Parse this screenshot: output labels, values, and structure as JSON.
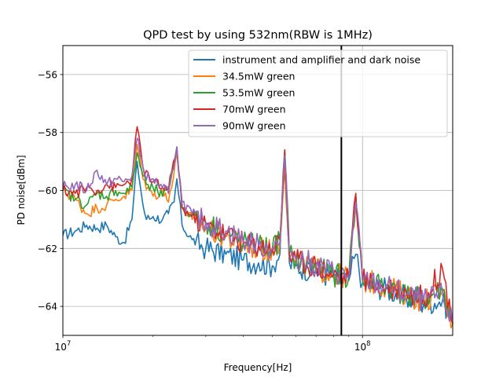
{
  "chart_data": {
    "type": "line",
    "title": "QPD test by using 532nm(RBW is 1MHz)",
    "xlabel": "Frequency[Hz]",
    "ylabel": "PD noise[dBm]",
    "xscale": "log",
    "xlim": [
      10000000,
      200000000
    ],
    "ylim": [
      -65,
      -55
    ],
    "xticks": [
      {
        "value": 10000000,
        "base": "10",
        "exp": "7"
      },
      {
        "value": 100000000,
        "base": "10",
        "exp": "8"
      }
    ],
    "yticks": [
      -56,
      -58,
      -60,
      -62,
      -64
    ],
    "grid": true,
    "legend_position": "top-right",
    "vline_x": 85000000,
    "series": [
      {
        "name": "instrument and amplifier and dark noise",
        "color": "#1f77b4",
        "points": [
          [
            10000000,
            -61.55
          ],
          [
            11000000,
            -61.4
          ],
          [
            12000000,
            -61.2
          ],
          [
            13000000,
            -61.3
          ],
          [
            14000000,
            -61.2
          ],
          [
            15000000,
            -61.6
          ],
          [
            16000000,
            -61.8
          ],
          [
            17000000,
            -61.0
          ],
          [
            17700000,
            -59.0
          ],
          [
            18500000,
            -60.5
          ],
          [
            19000000,
            -61.0
          ],
          [
            20000000,
            -60.9
          ],
          [
            21500000,
            -61.0
          ],
          [
            22500000,
            -60.8
          ],
          [
            23500000,
            -60.4
          ],
          [
            24000000,
            -59.6
          ],
          [
            25000000,
            -61.2
          ],
          [
            27000000,
            -61.7
          ],
          [
            30000000,
            -62.0
          ],
          [
            35000000,
            -62.2
          ],
          [
            40000000,
            -62.4
          ],
          [
            45000000,
            -62.5
          ],
          [
            50000000,
            -62.6
          ],
          [
            53000000,
            -62.2
          ],
          [
            55000000,
            -59.2
          ],
          [
            57000000,
            -62.5
          ],
          [
            60000000,
            -62.6
          ],
          [
            70000000,
            -62.8
          ],
          [
            80000000,
            -63.0
          ],
          [
            90000000,
            -63.1
          ],
          [
            95000000,
            -62.2
          ],
          [
            100000000,
            -63.2
          ],
          [
            120000000,
            -63.4
          ],
          [
            140000000,
            -63.7
          ],
          [
            160000000,
            -63.9
          ],
          [
            185000000,
            -63.8
          ],
          [
            200000000,
            -64.4
          ]
        ]
      },
      {
        "name": "34.5mW green",
        "color": "#ff7f0e",
        "points": [
          [
            10000000,
            -60.0
          ],
          [
            11000000,
            -60.3
          ],
          [
            12000000,
            -60.8
          ],
          [
            13000000,
            -60.6
          ],
          [
            14000000,
            -60.5
          ],
          [
            15000000,
            -60.3
          ],
          [
            16000000,
            -60.2
          ],
          [
            17000000,
            -60.0
          ],
          [
            17700000,
            -58.4
          ],
          [
            18500000,
            -59.6
          ],
          [
            19500000,
            -60.0
          ],
          [
            20000000,
            -60.2
          ],
          [
            21500000,
            -60.0
          ],
          [
            22500000,
            -60.4
          ],
          [
            24000000,
            -58.7
          ],
          [
            25000000,
            -60.6
          ],
          [
            27000000,
            -61.0
          ],
          [
            30000000,
            -61.3
          ],
          [
            35000000,
            -61.6
          ],
          [
            40000000,
            -61.9
          ],
          [
            45000000,
            -62.0
          ],
          [
            50000000,
            -62.1
          ],
          [
            53000000,
            -61.8
          ],
          [
            55000000,
            -58.9
          ],
          [
            57000000,
            -62.3
          ],
          [
            60000000,
            -62.4
          ],
          [
            70000000,
            -62.7
          ],
          [
            80000000,
            -62.9
          ],
          [
            90000000,
            -63.0
          ],
          [
            95000000,
            -60.5
          ],
          [
            100000000,
            -63.1
          ],
          [
            120000000,
            -63.3
          ],
          [
            140000000,
            -63.6
          ],
          [
            160000000,
            -63.8
          ],
          [
            185000000,
            -63.5
          ],
          [
            200000000,
            -64.6
          ]
        ]
      },
      {
        "name": "53.5mW green",
        "color": "#2ca02c",
        "points": [
          [
            10000000,
            -60.0
          ],
          [
            11000000,
            -60.3
          ],
          [
            12000000,
            -60.5
          ],
          [
            13000000,
            -60.1
          ],
          [
            14000000,
            -60.2
          ],
          [
            15000000,
            -60.0
          ],
          [
            16000000,
            -60.1
          ],
          [
            17000000,
            -59.9
          ],
          [
            17700000,
            -58.7
          ],
          [
            18500000,
            -59.5
          ],
          [
            19500000,
            -60.0
          ],
          [
            20000000,
            -59.9
          ],
          [
            21500000,
            -60.2
          ],
          [
            22500000,
            -60.0
          ],
          [
            24000000,
            -58.5
          ],
          [
            25000000,
            -60.6
          ],
          [
            27000000,
            -60.8
          ],
          [
            30000000,
            -61.1
          ],
          [
            35000000,
            -61.5
          ],
          [
            40000000,
            -61.8
          ],
          [
            45000000,
            -61.9
          ],
          [
            50000000,
            -62.0
          ],
          [
            53000000,
            -61.7
          ],
          [
            55000000,
            -58.6
          ],
          [
            57000000,
            -62.2
          ],
          [
            60000000,
            -62.4
          ],
          [
            70000000,
            -62.7
          ],
          [
            80000000,
            -62.9
          ],
          [
            90000000,
            -63.0
          ],
          [
            95000000,
            -60.2
          ],
          [
            100000000,
            -63.1
          ],
          [
            120000000,
            -63.3
          ],
          [
            140000000,
            -63.6
          ],
          [
            160000000,
            -63.8
          ],
          [
            185000000,
            -63.4
          ],
          [
            200000000,
            -64.6
          ]
        ]
      },
      {
        "name": "70mW green",
        "color": "#d62728",
        "points": [
          [
            10000000,
            -60.0
          ],
          [
            11000000,
            -60.1
          ],
          [
            12000000,
            -59.9
          ],
          [
            13000000,
            -60.0
          ],
          [
            14000000,
            -59.8
          ],
          [
            15000000,
            -59.9
          ],
          [
            16000000,
            -59.8
          ],
          [
            17000000,
            -59.6
          ],
          [
            17700000,
            -57.8
          ],
          [
            18500000,
            -59.2
          ],
          [
            19500000,
            -59.6
          ],
          [
            20000000,
            -59.7
          ],
          [
            21500000,
            -59.9
          ],
          [
            22500000,
            -60.0
          ],
          [
            24000000,
            -58.5
          ],
          [
            25000000,
            -60.6
          ],
          [
            27000000,
            -60.9
          ],
          [
            30000000,
            -61.2
          ],
          [
            35000000,
            -61.5
          ],
          [
            40000000,
            -61.8
          ],
          [
            45000000,
            -61.9
          ],
          [
            50000000,
            -62.0
          ],
          [
            53000000,
            -61.7
          ],
          [
            55000000,
            -58.6
          ],
          [
            57000000,
            -62.2
          ],
          [
            60000000,
            -62.4
          ],
          [
            70000000,
            -62.6
          ],
          [
            80000000,
            -62.9
          ],
          [
            90000000,
            -63.0
          ],
          [
            95000000,
            -60.1
          ],
          [
            100000000,
            -63.1
          ],
          [
            120000000,
            -63.3
          ],
          [
            140000000,
            -63.5
          ],
          [
            160000000,
            -63.7
          ],
          [
            185000000,
            -62.7
          ],
          [
            200000000,
            -64.6
          ]
        ]
      },
      {
        "name": "90mW green",
        "color": "#9467bd",
        "points": [
          [
            10000000,
            -59.9
          ],
          [
            11000000,
            -59.8
          ],
          [
            12000000,
            -60.0
          ],
          [
            13000000,
            -59.3
          ],
          [
            14000000,
            -59.8
          ],
          [
            15000000,
            -59.6
          ],
          [
            16000000,
            -59.7
          ],
          [
            17000000,
            -59.5
          ],
          [
            17700000,
            -58.2
          ],
          [
            18500000,
            -59.2
          ],
          [
            19500000,
            -59.7
          ],
          [
            20000000,
            -59.6
          ],
          [
            21500000,
            -59.9
          ],
          [
            22500000,
            -60.1
          ],
          [
            24000000,
            -58.5
          ],
          [
            25000000,
            -60.4
          ],
          [
            27000000,
            -60.8
          ],
          [
            30000000,
            -61.1
          ],
          [
            35000000,
            -61.4
          ],
          [
            40000000,
            -61.7
          ],
          [
            45000000,
            -61.9
          ],
          [
            50000000,
            -62.0
          ],
          [
            53000000,
            -61.8
          ],
          [
            55000000,
            -58.8
          ],
          [
            57000000,
            -62.1
          ],
          [
            60000000,
            -62.3
          ],
          [
            70000000,
            -62.6
          ],
          [
            80000000,
            -62.8
          ],
          [
            90000000,
            -63.0
          ],
          [
            95000000,
            -60.4
          ],
          [
            100000000,
            -63.1
          ],
          [
            120000000,
            -63.3
          ],
          [
            140000000,
            -63.6
          ],
          [
            160000000,
            -63.8
          ],
          [
            185000000,
            -63.6
          ],
          [
            200000000,
            -64.6
          ]
        ]
      }
    ]
  }
}
